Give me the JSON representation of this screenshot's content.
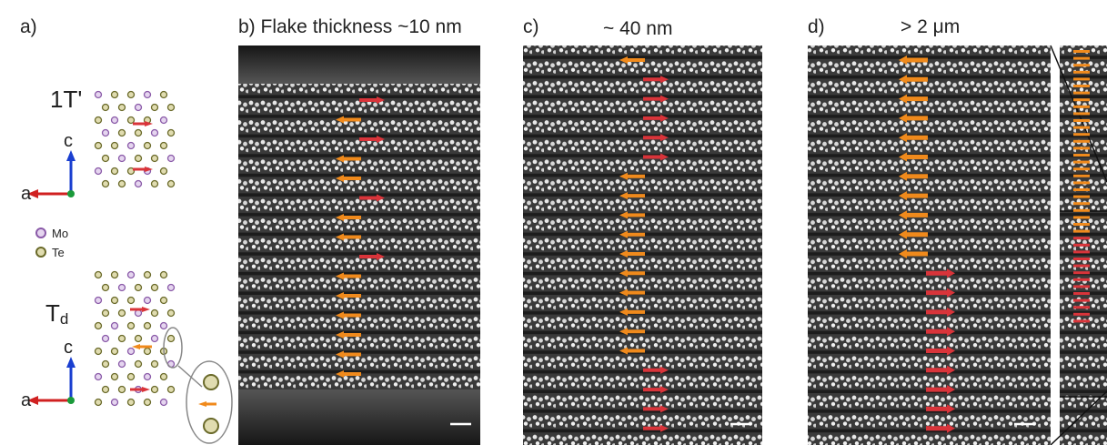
{
  "panel_a": {
    "label": "a)",
    "phase_top": "1T'",
    "phase_bottom": "T",
    "phase_bottom_subscript": "d",
    "axis_c": "c",
    "axis_a": "a",
    "legend": [
      "Mo",
      "Te"
    ]
  },
  "panel_b": {
    "label": "b) Flake thickness ~10 nm"
  },
  "panel_c": {
    "label": "c)",
    "thickness": "~ 40 nm"
  },
  "panel_d": {
    "label": "d)",
    "thickness": "> 2 μm"
  }
}
